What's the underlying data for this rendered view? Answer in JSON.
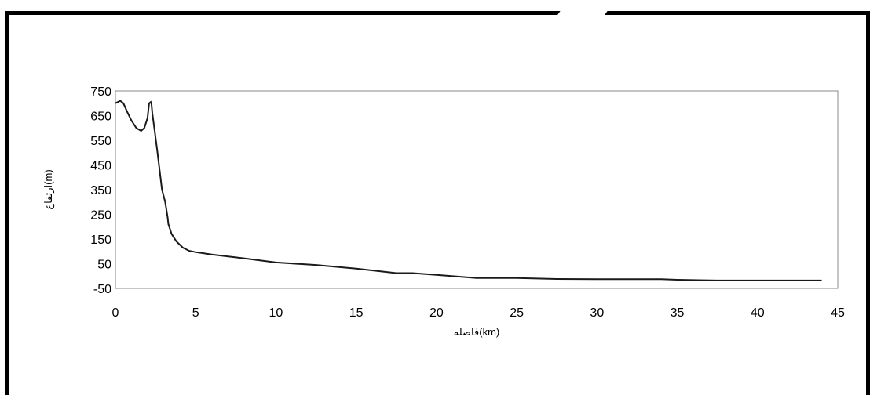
{
  "chart_data": {
    "type": "line",
    "title": "",
    "xlabel": "فاصله(km)",
    "ylabel": "ارتفاع(m)",
    "xlim": [
      0,
      45
    ],
    "ylim": [
      -50,
      750
    ],
    "xticks": [
      "0",
      "5",
      "10",
      "15",
      "20",
      "25",
      "30",
      "35",
      "40",
      "45"
    ],
    "yticks": [
      "750",
      "650",
      "550",
      "450",
      "350",
      "250",
      "150",
      "50",
      "-50"
    ],
    "grid": false,
    "legend": "none",
    "line_color": "#1a1a1a",
    "series": [
      {
        "x": [
          0,
          0.3,
          0.5,
          0.7,
          1.0,
          1.3,
          1.6,
          1.8,
          2.0,
          2.1,
          2.2,
          2.25,
          2.3,
          2.4,
          2.6,
          2.9,
          3.1,
          3.25,
          3.3,
          3.5,
          3.8,
          4.2,
          4.6,
          5.0,
          6.0,
          8.0,
          10.0,
          12.5,
          15.0,
          17.5,
          18.5,
          20.0,
          22.5,
          25.0,
          27.5,
          30.0,
          32.5,
          34.0,
          35.0,
          37.5,
          40.0,
          44.0
        ],
        "y": [
          700,
          710,
          700,
          670,
          630,
          600,
          588,
          600,
          640,
          700,
          705,
          695,
          660,
          610,
          510,
          350,
          300,
          240,
          210,
          170,
          140,
          115,
          102,
          97,
          87,
          72,
          55,
          45,
          30,
          12,
          12,
          5,
          -8,
          -8,
          -12,
          -13,
          -13,
          -13,
          -15,
          -18,
          -18,
          -18
        ]
      }
    ]
  }
}
